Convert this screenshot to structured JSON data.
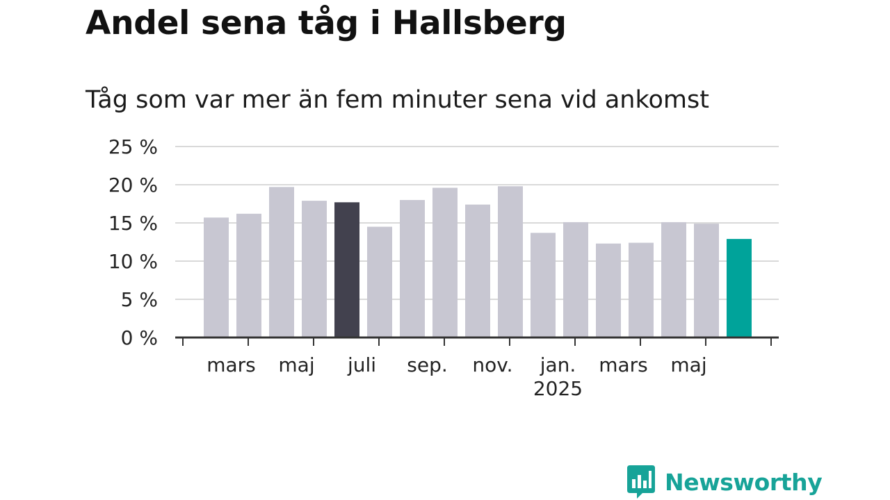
{
  "title": "Andel sena tåg i Hallsberg",
  "subtitle": "Tåg som var mer än fem minuter sena vid ankomst",
  "brand": {
    "name": "Newsworthy",
    "icon": "newsworthy-chart-bubble-icon",
    "color": "#17a398"
  },
  "colors": {
    "bar_default": "#c8c7d2",
    "bar_highlight": "#42414e",
    "bar_latest": "#00a39a",
    "grid": "#d9d9d9",
    "axis": "#333333"
  },
  "chart_data": {
    "type": "bar",
    "categories": [
      "2024-02",
      "2024-03",
      "2024-04",
      "2024-05",
      "2024-06",
      "2024-07",
      "2024-08",
      "2024-09",
      "2024-10",
      "2024-11",
      "2024-12",
      "2025-01",
      "2025-02",
      "2025-03",
      "2025-04",
      "2025-05",
      "2025-06"
    ],
    "values": [
      15.7,
      16.2,
      19.7,
      17.9,
      17.7,
      14.5,
      18.0,
      19.6,
      17.4,
      19.8,
      13.7,
      15.1,
      12.3,
      12.4,
      15.1,
      14.9,
      12.9
    ],
    "highlight": {
      "index": 4,
      "color": "#42414e"
    },
    "latest": {
      "index": 16,
      "color": "#00a39a"
    },
    "ylim": [
      0,
      25
    ],
    "yticks": [
      {
        "value": 0,
        "label": "0 %"
      },
      {
        "value": 5,
        "label": "5 %"
      },
      {
        "value": 10,
        "label": "10 %"
      },
      {
        "value": 15,
        "label": "15 %"
      },
      {
        "value": 20,
        "label": "20 %"
      },
      {
        "value": 25,
        "label": "25 %"
      }
    ],
    "xtick_labels": [
      {
        "index": 1,
        "label": "mars"
      },
      {
        "index": 3,
        "label": "maj"
      },
      {
        "index": 5,
        "label": "juli"
      },
      {
        "index": 7,
        "label": "sep."
      },
      {
        "index": 9,
        "label": "nov."
      },
      {
        "index": 11,
        "label": "jan.",
        "sublabel": "2025"
      },
      {
        "index": 13,
        "label": "mars"
      },
      {
        "index": 15,
        "label": "maj"
      }
    ],
    "grid": true,
    "legend": "none",
    "xlabel": "",
    "ylabel": ""
  }
}
